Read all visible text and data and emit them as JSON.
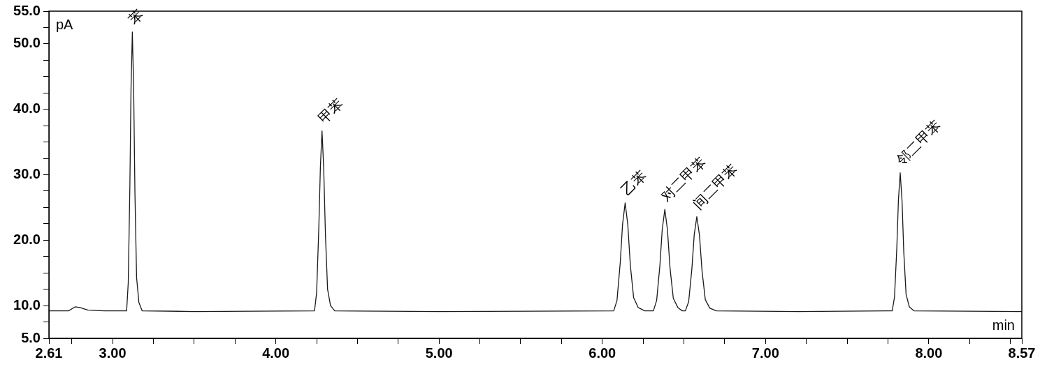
{
  "chart_data": {
    "type": "line",
    "xlabel": "min",
    "ylabel": "pA",
    "xlim": [
      2.61,
      8.57
    ],
    "xticks": [
      {
        "value": 2.61,
        "label": "2.61"
      },
      {
        "value": 2.75,
        "label": null
      },
      {
        "value": 3,
        "label": "3.00"
      },
      {
        "value": 3.25,
        "label": null
      },
      {
        "value": 3.5,
        "label": null
      },
      {
        "value": 3.75,
        "label": null
      },
      {
        "value": 4,
        "label": "4.00"
      },
      {
        "value": 4.25,
        "label": null
      },
      {
        "value": 4.5,
        "label": null
      },
      {
        "value": 4.75,
        "label": null
      },
      {
        "value": 5,
        "label": "5.00"
      },
      {
        "value": 5.25,
        "label": null
      },
      {
        "value": 5.5,
        "label": null
      },
      {
        "value": 5.75,
        "label": null
      },
      {
        "value": 6,
        "label": "6.00"
      },
      {
        "value": 6.25,
        "label": null
      },
      {
        "value": 6.5,
        "label": null
      },
      {
        "value": 6.75,
        "label": null
      },
      {
        "value": 7,
        "label": "7.00"
      },
      {
        "value": 7.25,
        "label": null
      },
      {
        "value": 7.5,
        "label": null
      },
      {
        "value": 7.75,
        "label": null
      },
      {
        "value": 8,
        "label": "8.00"
      },
      {
        "value": 8.25,
        "label": null
      },
      {
        "value": 8.5,
        "label": null
      },
      {
        "value": 8.57,
        "label": "8.57"
      }
    ],
    "ylim": [
      5,
      55
    ],
    "yticks": [
      {
        "value": 5,
        "label": "5.0"
      },
      {
        "value": 7.5,
        "label": null
      },
      {
        "value": 10,
        "label": "10.0"
      },
      {
        "value": 12.5,
        "label": null
      },
      {
        "value": 15,
        "label": null
      },
      {
        "value": 17.5,
        "label": null
      },
      {
        "value": 20,
        "label": "20.0"
      },
      {
        "value": 22.5,
        "label": null
      },
      {
        "value": 25,
        "label": null
      },
      {
        "value": 27.5,
        "label": null
      },
      {
        "value": 30,
        "label": "30.0"
      },
      {
        "value": 32.5,
        "label": null
      },
      {
        "value": 35,
        "label": null
      },
      {
        "value": 37.5,
        "label": null
      },
      {
        "value": 40,
        "label": "40.0"
      },
      {
        "value": 42.5,
        "label": null
      },
      {
        "value": 45,
        "label": null
      },
      {
        "value": 47.5,
        "label": null
      },
      {
        "value": 50,
        "label": "50.0"
      },
      {
        "value": 52.5,
        "label": null
      },
      {
        "value": 55,
        "label": "55.0"
      }
    ],
    "grid": false,
    "legend": false,
    "marker": "none",
    "line_style": "solid",
    "series": [
      {
        "color": "#1a1a1a",
        "x": [
          2.61,
          2.73,
          2.77,
          2.8,
          2.85,
          2.95,
          3.086,
          3.096,
          3.106,
          3.113,
          3.121,
          3.129,
          3.137,
          3.147,
          3.161,
          3.181,
          3.5,
          4.237,
          4.25,
          4.263,
          4.273,
          4.283,
          4.293,
          4.304,
          4.317,
          4.335,
          4.361,
          5.0,
          6.07,
          6.09,
          6.11,
          6.124,
          6.14,
          6.156,
          6.172,
          6.192,
          6.22,
          6.26,
          6.313,
          6.333,
          6.353,
          6.367,
          6.383,
          6.399,
          6.415,
          6.435,
          6.463,
          6.49,
          6.509,
          6.529,
          6.549,
          6.563,
          6.579,
          6.595,
          6.611,
          6.631,
          6.659,
          6.699,
          7.2,
          7.776,
          7.79,
          7.804,
          7.814,
          7.825,
          7.836,
          7.847,
          7.861,
          7.881,
          7.909,
          8.57
        ],
        "values": [
          9.2,
          9.2,
          9.8,
          9.7,
          9.3,
          9.2,
          9.2,
          13.5,
          28.4,
          43.3,
          51.8,
          43.3,
          27.1,
          14.3,
          10.5,
          9.2,
          9.1,
          9.2,
          12.0,
          21.6,
          31.2,
          36.7,
          31.2,
          20.8,
          12.5,
          10.0,
          9.2,
          9.1,
          9.2,
          10.8,
          16.6,
          22.4,
          25.7,
          22.4,
          16.1,
          11.2,
          9.7,
          9.2,
          9.2,
          10.8,
          16.2,
          21.6,
          24.7,
          21.6,
          15.7,
          11.1,
          9.7,
          9.2,
          9.2,
          10.6,
          15.7,
          20.8,
          23.6,
          20.8,
          15.3,
          10.9,
          9.6,
          9.2,
          9.1,
          9.2,
          11.3,
          18.7,
          26.1,
          30.3,
          26.1,
          18.1,
          11.7,
          9.8,
          9.2,
          9.1
        ]
      }
    ],
    "annotations": [
      {
        "text": "苯",
        "x": 3.121,
        "y": 51.8
      },
      {
        "text": "甲苯",
        "x": 4.283,
        "y": 36.7
      },
      {
        "text": "乙苯",
        "x": 6.14,
        "y": 25.7
      },
      {
        "text": "对二甲苯",
        "x": 6.383,
        "y": 24.7
      },
      {
        "text": "间二甲苯",
        "x": 6.579,
        "y": 23.6
      },
      {
        "text": "邻二甲苯",
        "x": 7.825,
        "y": 30.3
      }
    ]
  }
}
